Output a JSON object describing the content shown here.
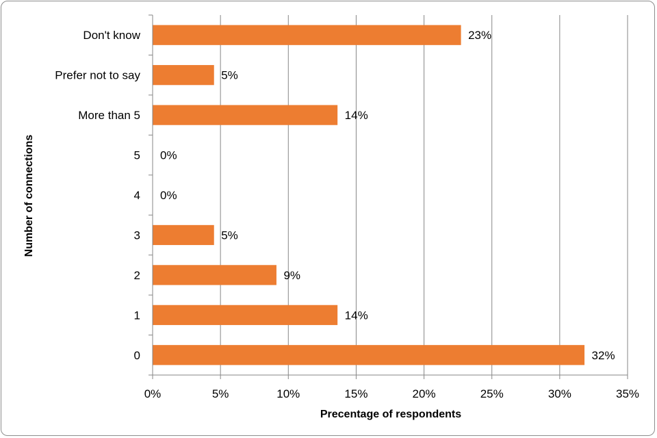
{
  "chart_data": {
    "type": "bar",
    "orientation": "horizontal",
    "categories": [
      "0",
      "1",
      "2",
      "3",
      "4",
      "5",
      "More than 5",
      "Prefer not to say",
      "Don't know"
    ],
    "values": [
      32,
      14,
      9,
      5,
      0,
      0,
      14,
      5,
      23
    ],
    "plotted_values": [
      31.8,
      13.6,
      9.1,
      4.5,
      0,
      0,
      13.6,
      4.5,
      22.7
    ],
    "data_labels": [
      "32%",
      "14%",
      "9%",
      "5%",
      "0%",
      "0%",
      "14%",
      "5%",
      "23%"
    ],
    "value_unit": "%",
    "xlabel": "Precentage of respondents",
    "ylabel": "Number of connections",
    "xlim": [
      0,
      35
    ],
    "xticks": [
      0,
      5,
      10,
      15,
      20,
      25,
      30,
      35
    ],
    "xtick_labels": [
      "0%",
      "5%",
      "10%",
      "15%",
      "20%",
      "25%",
      "30%",
      "35%"
    ],
    "grid": "vertical",
    "legend": "none",
    "colors": {
      "bar": "#ED7D31",
      "grid": "#868686",
      "axis": "#868686",
      "frame": "#8C8C8C"
    }
  }
}
